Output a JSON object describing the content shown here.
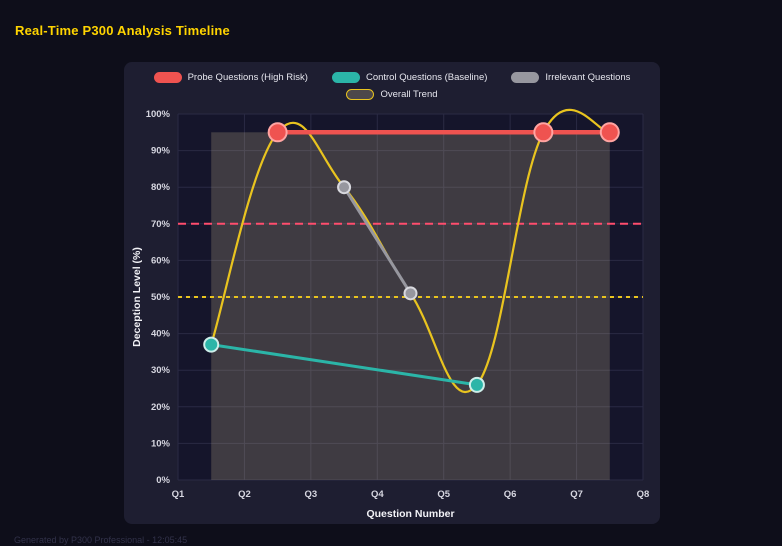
{
  "page": {
    "title": "Real-Time P300 Analysis Timeline",
    "footer": "Generated by P300 Professional - 12:05:45"
  },
  "colors": {
    "page_bg": "#0e0e1a",
    "panel_bg": "#1e1e31",
    "plot_bg": "#15152b",
    "grid": "#2a2a44",
    "title": "#ffd400",
    "tick_text": "#d6d6e0",
    "axis_title": "#f2f2f7"
  },
  "chart_data": {
    "type": "line",
    "title": "Real-Time P300 Analysis Timeline",
    "xlabel": "Question Number",
    "ylabel": "Deception Level (%)",
    "x_ticks": [
      "Q1",
      "Q2",
      "Q3",
      "Q4",
      "Q5",
      "Q6",
      "Q7",
      "Q8"
    ],
    "x_range": [
      1,
      8
    ],
    "ylim": [
      0,
      100
    ],
    "y_tick_step": 10,
    "y_tick_suffix": "%",
    "grid": true,
    "legend_position": "top",
    "series": [
      {
        "name": "Probe Questions (High Risk)",
        "color": "#ef5350",
        "marker_border": "#ffa4a2",
        "line_width": 4.5,
        "marker_size": 9,
        "smooth": false,
        "points": [
          [
            2.5,
            95
          ],
          [
            6.5,
            95
          ],
          [
            7.5,
            95
          ]
        ]
      },
      {
        "name": "Control Questions (Baseline)",
        "color": "#2bb5a8",
        "marker_border": "#cdeeea",
        "line_width": 3,
        "marker_size": 7,
        "smooth": false,
        "points": [
          [
            1.5,
            37
          ],
          [
            5.5,
            26
          ]
        ]
      },
      {
        "name": "Irrelevant Questions",
        "color": "#97979f",
        "marker_border": "#d9d9df",
        "line_width": 3,
        "marker_size": 6,
        "smooth": false,
        "points": [
          [
            3.5,
            80
          ],
          [
            4.5,
            51
          ]
        ]
      },
      {
        "name": "Overall Trend",
        "color": "#e9c41f",
        "marker_border": null,
        "line_width": 2.2,
        "marker_size": 0,
        "smooth": true,
        "legend_fill": "rgba(214,196,150,0.25)",
        "points": [
          [
            1.5,
            37
          ],
          [
            2.5,
            95
          ],
          [
            3.5,
            80
          ],
          [
            4.5,
            51
          ],
          [
            5.5,
            26
          ],
          [
            6.5,
            95
          ],
          [
            7.5,
            95
          ]
        ]
      }
    ],
    "thresholds": [
      {
        "value": 70,
        "color": "#ff4d6d",
        "dash": "8 5"
      },
      {
        "value": 50,
        "color": "#e9c41f",
        "dash": "4 4"
      }
    ],
    "highlight_region": {
      "x_start": 1.5,
      "x_end": 7.5,
      "y_start": 0,
      "y_end": 95,
      "fill": "rgba(214,196,150,0.22)"
    }
  }
}
